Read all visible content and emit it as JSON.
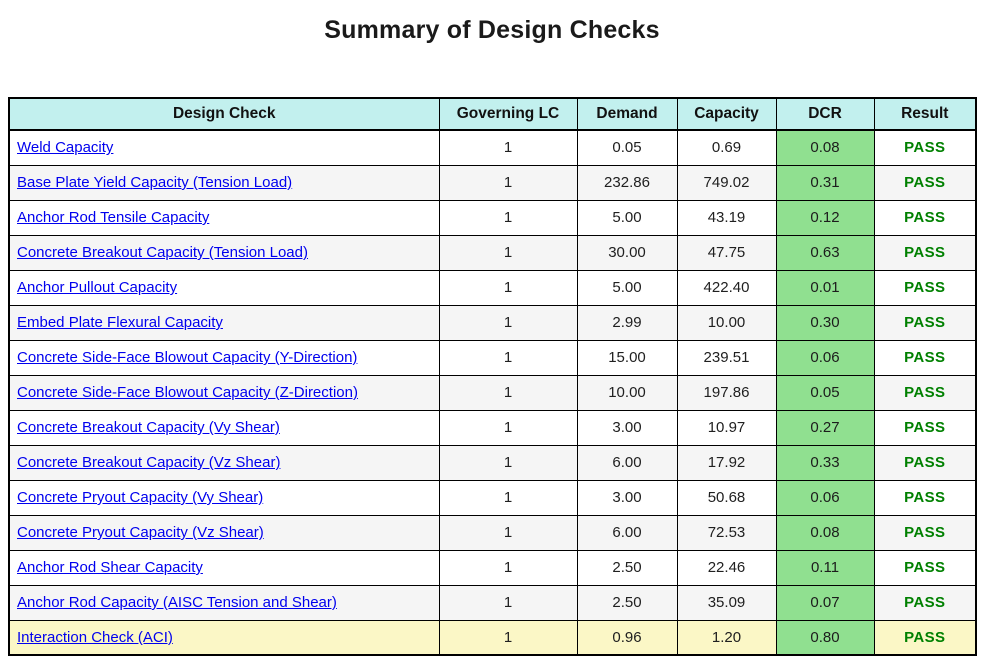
{
  "title": "Summary of Design Checks",
  "table": {
    "headers": {
      "check": "Design Check",
      "lc": "Governing LC",
      "demand": "Demand",
      "capacity": "Capacity",
      "dcr": "DCR",
      "result": "Result"
    },
    "rows": [
      {
        "check": "Weld Capacity",
        "lc": "1",
        "demand": "0.05",
        "capacity": "0.69",
        "dcr": "0.08",
        "result": "PASS"
      },
      {
        "check": "Base Plate Yield Capacity (Tension Load)",
        "lc": "1",
        "demand": "232.86",
        "capacity": "749.02",
        "dcr": "0.31",
        "result": "PASS"
      },
      {
        "check": "Anchor Rod Tensile Capacity",
        "lc": "1",
        "demand": "5.00",
        "capacity": "43.19",
        "dcr": "0.12",
        "result": "PASS"
      },
      {
        "check": "Concrete Breakout Capacity (Tension Load)",
        "lc": "1",
        "demand": "30.00",
        "capacity": "47.75",
        "dcr": "0.63",
        "result": "PASS"
      },
      {
        "check": "Anchor Pullout Capacity",
        "lc": "1",
        "demand": "5.00",
        "capacity": "422.40",
        "dcr": "0.01",
        "result": "PASS"
      },
      {
        "check": "Embed Plate Flexural Capacity",
        "lc": "1",
        "demand": "2.99",
        "capacity": "10.00",
        "dcr": "0.30",
        "result": "PASS"
      },
      {
        "check": "Concrete Side-Face Blowout Capacity (Y-Direction)",
        "lc": "1",
        "demand": "15.00",
        "capacity": "239.51",
        "dcr": "0.06",
        "result": "PASS"
      },
      {
        "check": "Concrete Side-Face Blowout Capacity (Z-Direction)",
        "lc": "1",
        "demand": "10.00",
        "capacity": "197.86",
        "dcr": "0.05",
        "result": "PASS"
      },
      {
        "check": "Concrete Breakout Capacity (Vy Shear)",
        "lc": "1",
        "demand": "3.00",
        "capacity": "10.97",
        "dcr": "0.27",
        "result": "PASS"
      },
      {
        "check": "Concrete Breakout Capacity (Vz Shear)",
        "lc": "1",
        "demand": "6.00",
        "capacity": "17.92",
        "dcr": "0.33",
        "result": "PASS"
      },
      {
        "check": "Concrete Pryout Capacity (Vy Shear)",
        "lc": "1",
        "demand": "3.00",
        "capacity": "50.68",
        "dcr": "0.06",
        "result": "PASS"
      },
      {
        "check": "Concrete Pryout Capacity (Vz Shear)",
        "lc": "1",
        "demand": "6.00",
        "capacity": "72.53",
        "dcr": "0.08",
        "result": "PASS"
      },
      {
        "check": "Anchor Rod Shear Capacity",
        "lc": "1",
        "demand": "2.50",
        "capacity": "22.46",
        "dcr": "0.11",
        "result": "PASS"
      },
      {
        "check": "Anchor Rod Capacity (AISC Tension and Shear)",
        "lc": "1",
        "demand": "2.50",
        "capacity": "35.09",
        "dcr": "0.07",
        "result": "PASS"
      },
      {
        "check": "Interaction Check (ACI)",
        "lc": "1",
        "demand": "0.96",
        "capacity": "1.20",
        "dcr": "0.80",
        "result": "PASS"
      }
    ]
  },
  "colors": {
    "header_bg": "#c2f0ee",
    "dcr_cell_bg": "#90e090",
    "highlight_row_bg": "#fbf7c6",
    "stripe_row_bg": "#f5f5f5",
    "link_text": "#0000ee",
    "pass_text": "#008000"
  }
}
